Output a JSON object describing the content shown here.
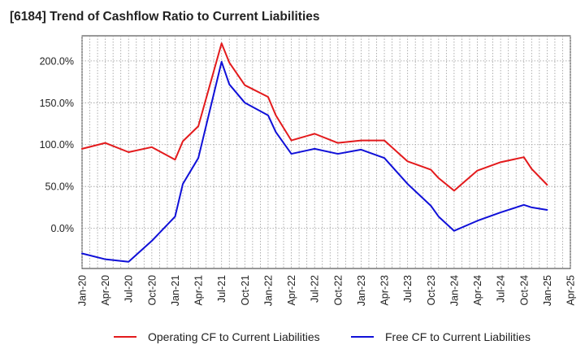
{
  "chart_data": {
    "type": "line",
    "title": "[6184]  Trend of Cashflow Ratio to Current Liabilities",
    "xlabel": "",
    "ylabel": "",
    "x_tick_labels": [
      "Jan-20",
      "Apr-20",
      "Jul-20",
      "Oct-20",
      "Jan-21",
      "Apr-21",
      "Jul-21",
      "Oct-21",
      "Jan-22",
      "Apr-22",
      "Jul-22",
      "Oct-22",
      "Jan-23",
      "Apr-23",
      "Jul-23",
      "Oct-23",
      "Jan-24",
      "Apr-24",
      "Jul-24",
      "Oct-24",
      "Jan-25",
      "Apr-25"
    ],
    "y_ticks": [
      0,
      50,
      100,
      150,
      200
    ],
    "y_tick_labels": [
      "0.0%",
      "50.0%",
      "100.0%",
      "150.0%",
      "200.0%"
    ],
    "ylim": [
      -48,
      230
    ],
    "grid": true,
    "legend_position": "bottom",
    "x": [
      "Jan-20",
      "Apr-20",
      "Jul-20",
      "Oct-20",
      "Jan-21",
      "Feb-21",
      "Apr-21",
      "Jul-21",
      "Aug-21",
      "Oct-21",
      "Jan-22",
      "Feb-22",
      "Apr-22",
      "Jul-22",
      "Oct-22",
      "Jan-23",
      "Apr-23",
      "Jul-23",
      "Oct-23",
      "Nov-23",
      "Jan-24",
      "Apr-24",
      "Jul-24",
      "Oct-24",
      "Nov-24",
      "Jan-25"
    ],
    "series": [
      {
        "name": "Operating CF to Current Liabilities",
        "color": "#e31a1c",
        "values": [
          95,
          102,
          91,
          97,
          82,
          104,
          122,
          221,
          198,
          171,
          157,
          135,
          105,
          113,
          102,
          105,
          105,
          80,
          70,
          60,
          45,
          69,
          79,
          85,
          71,
          52
        ]
      },
      {
        "name": "Free CF to Current Liabilities",
        "color": "#1010d8",
        "values": [
          -30,
          -37,
          -40,
          -15,
          14,
          53,
          84,
          199,
          172,
          150,
          135,
          115,
          89,
          95,
          89,
          94,
          84,
          53,
          27,
          14,
          -3,
          9,
          19,
          28,
          25,
          22
        ]
      }
    ]
  }
}
